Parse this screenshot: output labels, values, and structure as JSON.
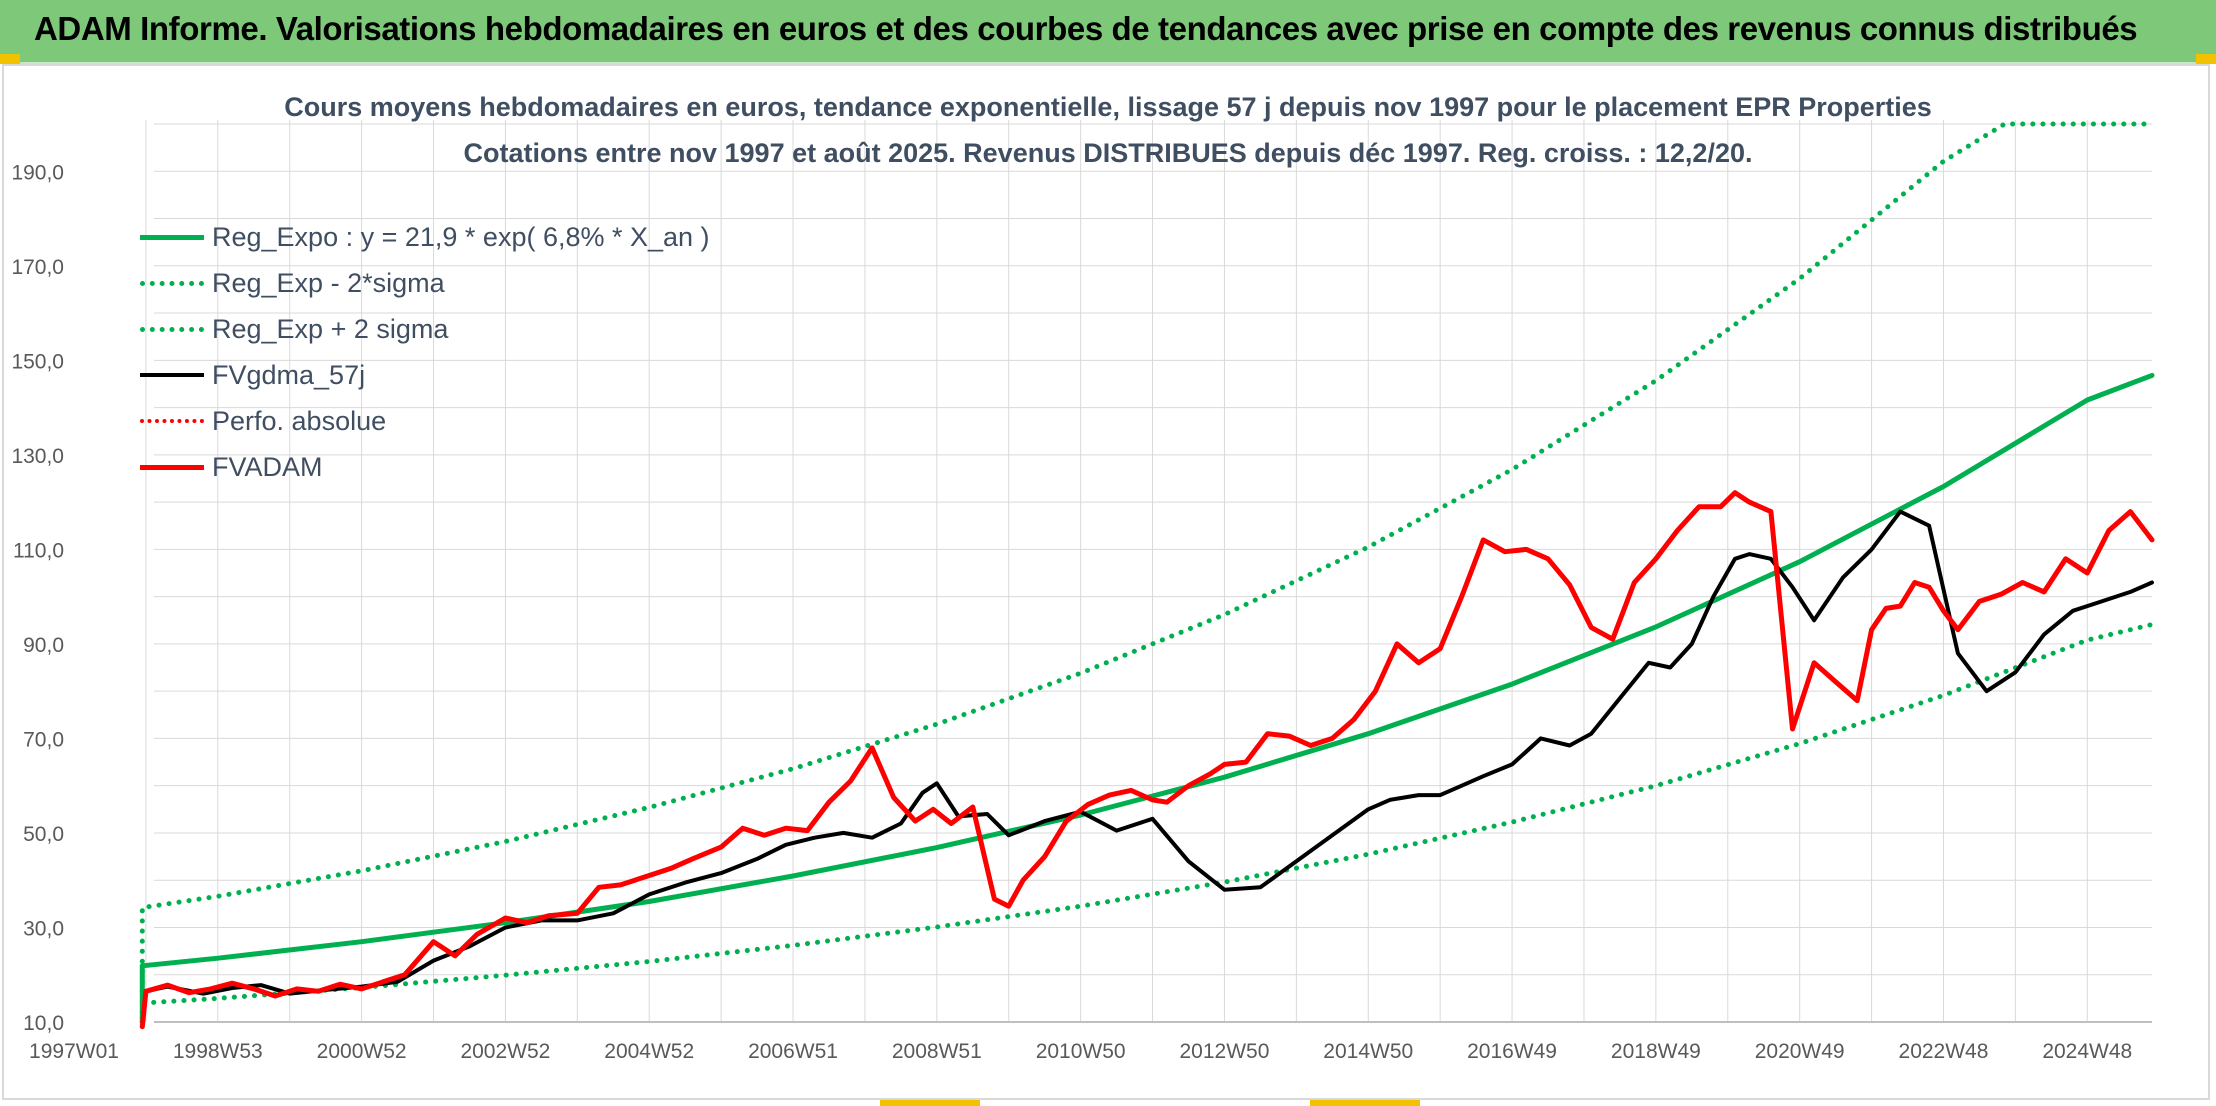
{
  "header": {
    "title": "ADAM Informe. Valorisations hebdomadaires en euros et des courbes de tendances avec prise en compte des revenus connus distribués"
  },
  "chart_data": {
    "type": "line",
    "title": "Cours moyens hebdomadaires en euros, tendance exponentielle, lissage 57 j depuis nov 1997 pour le placement EPR Properties",
    "subtitle": "Cotations entre nov 1997 et août 2025. Revenus DISTRIBUES depuis déc 1997. Reg. croiss. : 12,2/20.",
    "xlabel": "",
    "ylabel": "",
    "ylim": [
      10,
      200
    ],
    "xlim": [
      1997.0,
      2025.9
    ],
    "grid": true,
    "legend_position": "top-left",
    "x_tick_labels": [
      {
        "label": "1997W01",
        "x": 1997.0
      },
      {
        "label": "1998W53",
        "x": 1999.0
      },
      {
        "label": "2000W52",
        "x": 2001.0
      },
      {
        "label": "2002W52",
        "x": 2003.0
      },
      {
        "label": "2004W52",
        "x": 2005.0
      },
      {
        "label": "2006W51",
        "x": 2007.0
      },
      {
        "label": "2008W51",
        "x": 2009.0
      },
      {
        "label": "2010W50",
        "x": 2011.0
      },
      {
        "label": "2012W50",
        "x": 2013.0
      },
      {
        "label": "2014W50",
        "x": 2015.0
      },
      {
        "label": "2016W49",
        "x": 2017.0
      },
      {
        "label": "2018W49",
        "x": 2019.0
      },
      {
        "label": "2020W49",
        "x": 2021.0
      },
      {
        "label": "2022W48",
        "x": 2023.0
      },
      {
        "label": "2024W48",
        "x": 2025.0
      }
    ],
    "y_tick_labels": [
      "10,0",
      "30,0",
      "50,0",
      "70,0",
      "90,0",
      "110,0",
      "130,0",
      "150,0",
      "170,0",
      "190,0"
    ],
    "y_ticks": [
      10,
      30,
      50,
      70,
      90,
      110,
      130,
      150,
      170,
      190
    ],
    "series": [
      {
        "name": "Reg_Expo : y = 21,9 * exp( 6,8% *  X_an )",
        "color": "#00b050",
        "style": "solid",
        "width": 5,
        "x": [
          1997.95,
          1997.95,
          1999,
          2001,
          2003,
          2005,
          2007,
          2009,
          2011,
          2013,
          2015,
          2017,
          2019,
          2021,
          2023,
          2025,
          2025.9
        ],
        "y": [
          10.0,
          21.9,
          23.5,
          27.0,
          31.0,
          35.5,
          40.9,
          46.9,
          53.8,
          61.8,
          71.0,
          81.5,
          93.6,
          107.4,
          123.3,
          141.6,
          146.8
        ]
      },
      {
        "name": "Reg_Exp - 2*sigma",
        "color": "#00b050",
        "style": "dotted",
        "width": 5,
        "x": [
          1997.95,
          1997.95,
          1999,
          2001,
          2003,
          2005,
          2007,
          2009,
          2011,
          2013,
          2015,
          2017,
          2019,
          2021,
          2023,
          2025,
          2025.9
        ],
        "y": [
          10.0,
          14.0,
          15.0,
          17.3,
          19.9,
          22.8,
          26.2,
          30.1,
          34.5,
          39.6,
          45.5,
          52.3,
          60.0,
          68.9,
          79.1,
          90.8,
          94.1
        ]
      },
      {
        "name": "Reg_Exp + 2 sigma",
        "color": "#00b050",
        "style": "dotted",
        "width": 5,
        "x": [
          1997.95,
          1997.95,
          1999,
          2001,
          2003,
          2005,
          2007,
          2009,
          2011,
          2013,
          2015,
          2017,
          2019,
          2021,
          2023,
          2023.85,
          2025,
          2025.9
        ],
        "y": [
          10.0,
          34.2,
          36.6,
          42.0,
          48.2,
          55.4,
          63.6,
          73.0,
          83.8,
          96.2,
          110.5,
          126.9,
          145.7,
          167.3,
          192.1,
          200.0,
          200.0,
          200.0
        ]
      },
      {
        "name": "FVgdma_57j",
        "color": "#000000",
        "style": "solid",
        "width": 4,
        "x": [
          1998.0,
          1998.3,
          1998.8,
          1999.2,
          1999.6,
          2000.0,
          2000.5,
          2001.0,
          2001.5,
          2002.0,
          2002.5,
          2003.0,
          2003.5,
          2004.0,
          2004.5,
          2005.0,
          2005.5,
          2006.0,
          2006.5,
          2006.9,
          2007.3,
          2007.7,
          2008.1,
          2008.5,
          2008.8,
          2009.0,
          2009.3,
          2009.7,
          2010.0,
          2010.5,
          2011.0,
          2011.5,
          2012.0,
          2012.5,
          2013.0,
          2013.5,
          2014.0,
          2014.5,
          2015.0,
          2015.3,
          2015.7,
          2016.0,
          2016.3,
          2016.6,
          2017.0,
          2017.4,
          2017.8,
          2018.1,
          2018.5,
          2018.9,
          2019.2,
          2019.5,
          2019.8,
          2020.1,
          2020.3,
          2020.6,
          2020.9,
          2021.2,
          2021.6,
          2022.0,
          2022.4,
          2022.8,
          2023.2,
          2023.6,
          2024.0,
          2024.4,
          2024.8,
          2025.2,
          2025.6,
          2025.9
        ],
        "y": [
          16.5,
          17.5,
          16.0,
          17.2,
          17.8,
          16.0,
          16.8,
          17.5,
          18.5,
          23.0,
          26.0,
          30.0,
          31.5,
          31.5,
          33.0,
          37.0,
          39.5,
          41.5,
          44.5,
          47.5,
          49.0,
          50.0,
          49.0,
          52.0,
          58.5,
          60.5,
          53.5,
          54.0,
          49.5,
          52.5,
          54.5,
          50.5,
          53.0,
          44.0,
          38.0,
          38.5,
          44.0,
          49.5,
          55.0,
          57.0,
          58.0,
          58.0,
          60.0,
          62.0,
          64.5,
          70.0,
          68.5,
          71.0,
          78.5,
          86.0,
          85.0,
          90.0,
          100.0,
          108.0,
          109.0,
          108.0,
          102.0,
          95.0,
          104.0,
          110.0,
          118.0,
          115.0,
          88.0,
          80.0,
          84.0,
          92.0,
          97.0,
          99.0,
          101.0,
          103.0
        ]
      },
      {
        "name": "Perfo. absolue",
        "color": "#ff0000",
        "style": "dotted",
        "width": 4,
        "x": [],
        "y": []
      },
      {
        "name": "FVADAM",
        "color": "#ff0000",
        "style": "solid",
        "width": 5,
        "x": [
          1997.95,
          1998.0,
          1998.3,
          1998.6,
          1998.9,
          1999.2,
          1999.5,
          1999.8,
          2000.1,
          2000.4,
          2000.7,
          2001.0,
          2001.3,
          2001.6,
          2002.0,
          2002.3,
          2002.6,
          2003.0,
          2003.3,
          2003.6,
          2004.0,
          2004.3,
          2004.6,
          2005.0,
          2005.3,
          2005.6,
          2006.0,
          2006.3,
          2006.6,
          2006.9,
          2007.2,
          2007.5,
          2007.8,
          2008.1,
          2008.4,
          2008.7,
          2008.95,
          2009.2,
          2009.5,
          2009.8,
          2010.0,
          2010.2,
          2010.5,
          2010.8,
          2011.1,
          2011.4,
          2011.7,
          2012.0,
          2012.2,
          2012.5,
          2012.8,
          2013.0,
          2013.3,
          2013.6,
          2013.9,
          2014.2,
          2014.5,
          2014.8,
          2015.1,
          2015.4,
          2015.7,
          2016.0,
          2016.3,
          2016.6,
          2016.9,
          2017.2,
          2017.5,
          2017.8,
          2018.1,
          2018.4,
          2018.7,
          2019.0,
          2019.3,
          2019.6,
          2019.9,
          2020.1,
          2020.3,
          2020.6,
          2020.9,
          2021.2,
          2021.5,
          2021.8,
          2022.0,
          2022.2,
          2022.4,
          2022.6,
          2022.8,
          2023.0,
          2023.2,
          2023.5,
          2023.8,
          2024.1,
          2024.4,
          2024.7,
          2025.0,
          2025.3,
          2025.6,
          2025.9
        ],
        "y": [
          9.0,
          16.5,
          17.8,
          16.2,
          17.0,
          18.2,
          17.0,
          15.5,
          17.0,
          16.5,
          18.0,
          17.0,
          18.5,
          20.0,
          27.0,
          24.0,
          28.5,
          32.0,
          31.0,
          32.5,
          33.0,
          38.5,
          39.0,
          41.0,
          42.5,
          44.5,
          47.0,
          51.0,
          49.5,
          51.0,
          50.5,
          56.5,
          61.0,
          68.0,
          57.5,
          52.5,
          55.0,
          52.0,
          55.5,
          36.0,
          34.5,
          40.0,
          45.0,
          52.5,
          56.0,
          58.0,
          59.0,
          57.0,
          56.5,
          60.0,
          62.5,
          64.5,
          65.0,
          71.0,
          70.5,
          68.5,
          70.0,
          74.0,
          80.0,
          90.0,
          86.0,
          89.0,
          100.0,
          112.0,
          109.5,
          110.0,
          108.0,
          102.5,
          93.5,
          91.0,
          103.0,
          108.0,
          114.0,
          119.0,
          119.0,
          122.0,
          120.0,
          118.0,
          72.0,
          86.0,
          82.0,
          78.0,
          93.0,
          97.5,
          98.0,
          103.0,
          102.0,
          97.0,
          93.0,
          99.0,
          100.5,
          103.0,
          101.0,
          108.0,
          105.0,
          114.0,
          118.0,
          112.0
        ]
      }
    ]
  }
}
